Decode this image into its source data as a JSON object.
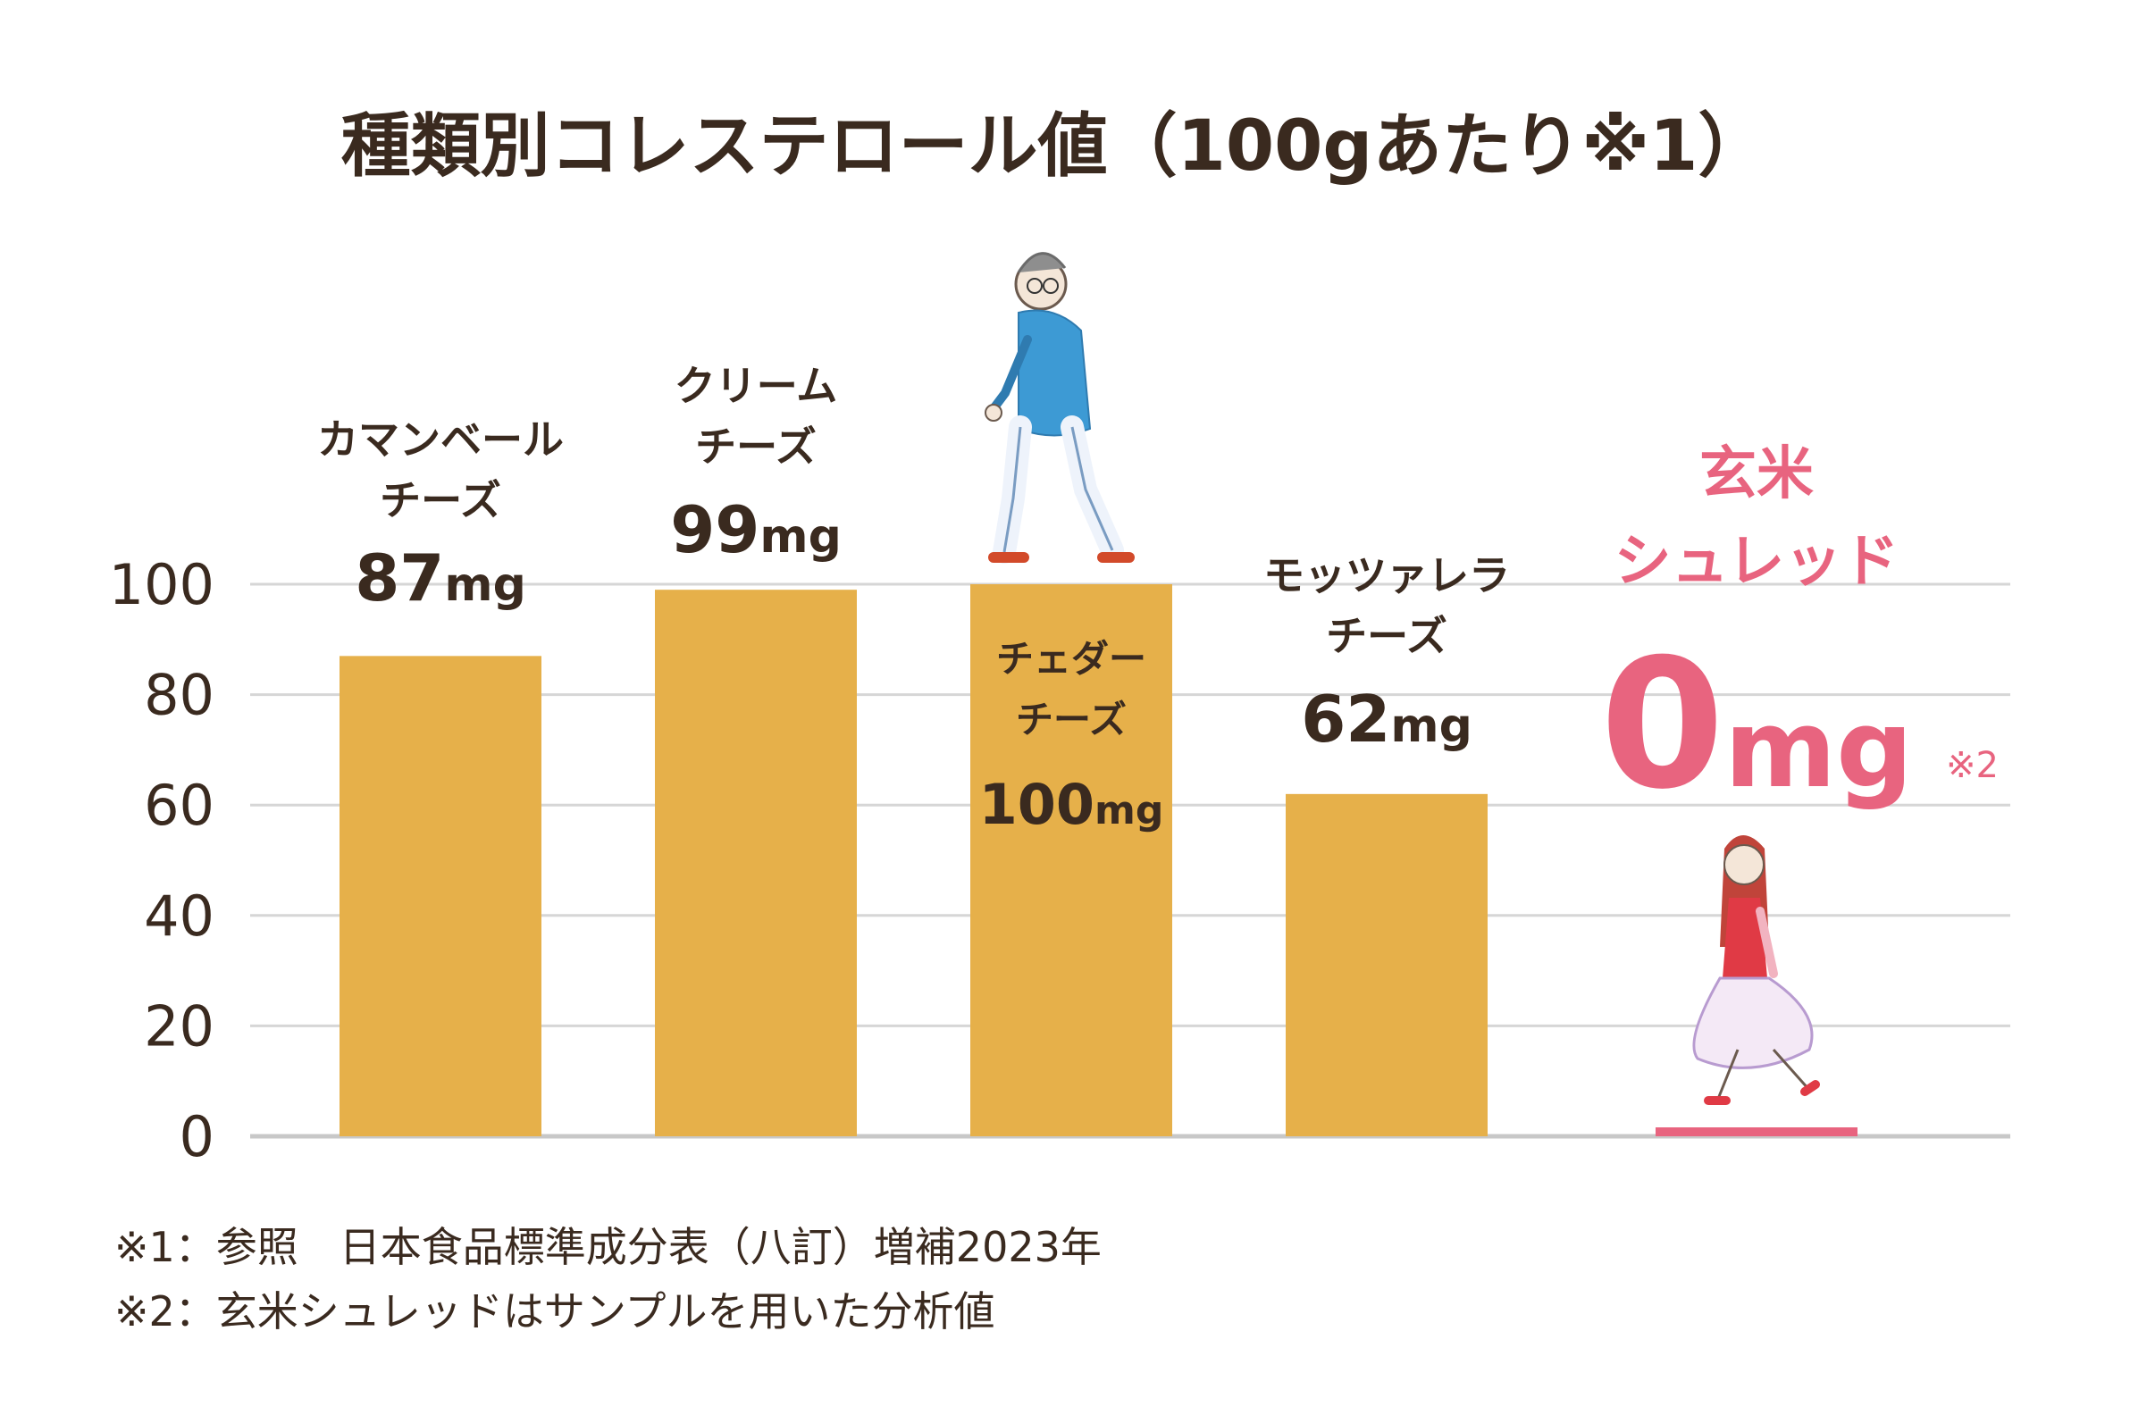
{
  "chart_data": {
    "type": "bar",
    "title": "種類別コレステロール値（100gあたり※1）",
    "unit": "mg",
    "ylim": [
      0,
      100
    ],
    "yticks": [
      "0",
      "20",
      "40",
      "60",
      "80",
      "100"
    ],
    "grid": true,
    "categories": [
      {
        "label_lines": [
          "カマンベール",
          "チーズ"
        ],
        "value": 87,
        "value_text": "87"
      },
      {
        "label_lines": [
          "クリーム",
          "チーズ"
        ],
        "value": 99,
        "value_text": "99"
      },
      {
        "label_lines": [
          "チェダー",
          "チーズ"
        ],
        "value": 100,
        "value_text": "100"
      },
      {
        "label_lines": [
          "モッツァレラ",
          "チーズ"
        ],
        "value": 62,
        "value_text": "62"
      },
      {
        "label_lines": [
          "玄米",
          "シュレッド"
        ],
        "value": 0,
        "value_text": "0",
        "note_mark": "※2",
        "highlight": true
      }
    ],
    "colors": {
      "bar": "#e6b04a",
      "highlight": "#e8647f",
      "grid": "#d6d6d6",
      "text": "#3a2a1f"
    }
  },
  "footnotes": [
    "※1：参照　日本食品標準成分表（八訂）増補2023年",
    "※2：玄米シュレッドはサンプルを用いた分析値"
  ],
  "illustrations": [
    "walking-man-icon",
    "walking-woman-icon"
  ]
}
